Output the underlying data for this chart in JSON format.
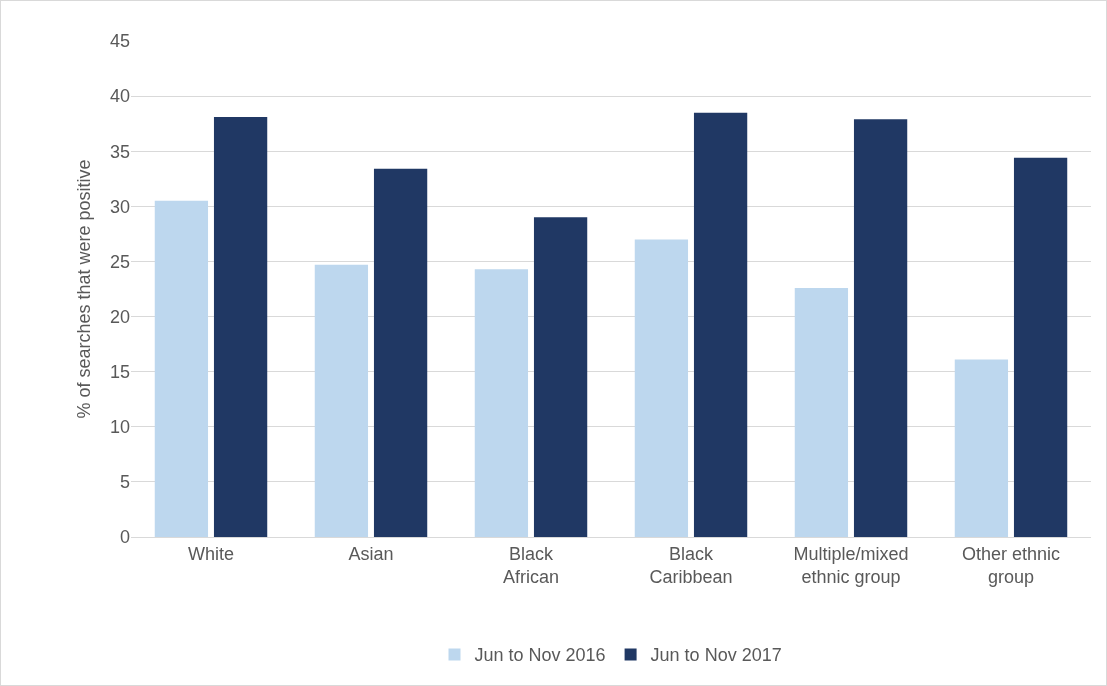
{
  "chart_data": {
    "type": "bar",
    "ylabel": "% of searches that were positive",
    "categories": [
      "White",
      "Asian",
      "Black African",
      "Black Caribbean",
      "Multiple/mixed ethnic group",
      "Other ethnic group"
    ],
    "series": [
      {
        "name": "Jun to Nov 2016",
        "color": "#bdd7ee",
        "values": [
          30.5,
          24.7,
          24.3,
          27.0,
          22.6,
          16.1
        ]
      },
      {
        "name": "Jun to Nov 2017",
        "color": "#203864",
        "values": [
          38.1,
          33.4,
          29.0,
          38.5,
          37.9,
          34.4
        ]
      }
    ],
    "ylim": [
      0,
      45
    ],
    "yticks": [
      0,
      5,
      10,
      15,
      20,
      25,
      30,
      35,
      40,
      45
    ],
    "grid": "y",
    "legend": "bottom"
  }
}
